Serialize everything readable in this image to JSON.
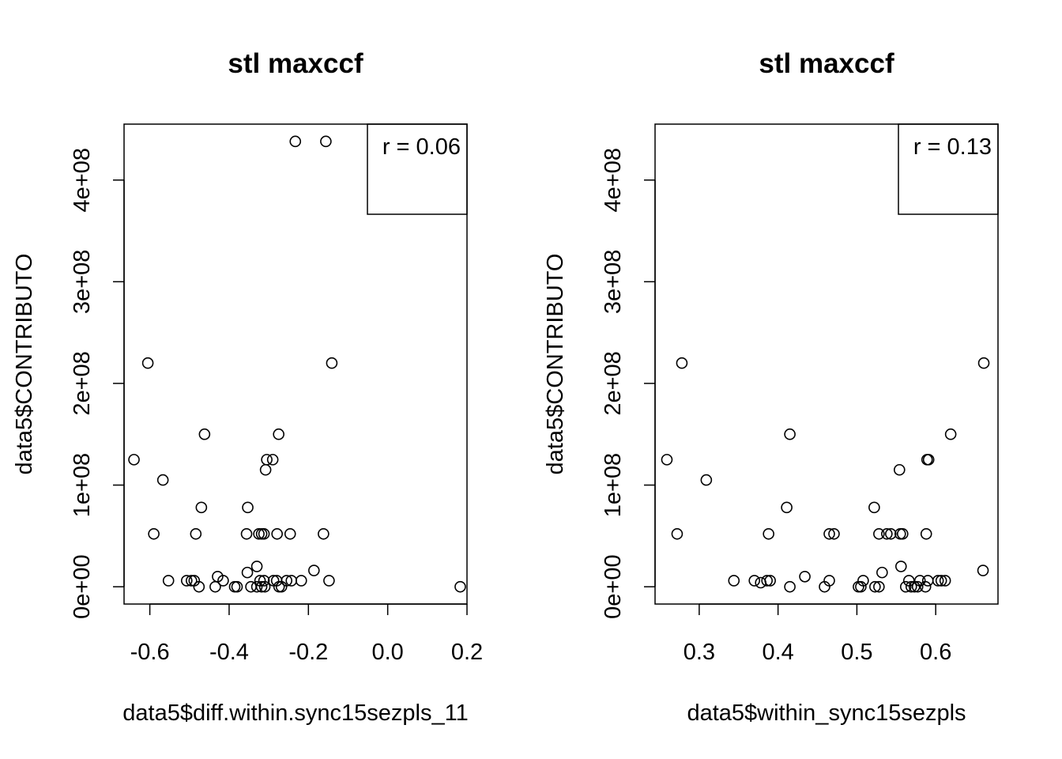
{
  "chart_data": [
    {
      "type": "scatter",
      "title": "stl maxccf",
      "xlabel": "data5$diff.within.sync15sezpls_11",
      "ylabel": "data5$CONTRIBUTO",
      "legend_text": "r = 0.06",
      "legend_position": "top-right",
      "xlim": [
        -0.665,
        0.2
      ],
      "ylim": [
        -17000000,
        455000000
      ],
      "xticks": [
        -0.6,
        -0.4,
        -0.2,
        0.0,
        0.2
      ],
      "xtick_labels": [
        "-0.6",
        "-0.4",
        "-0.2",
        "0.0",
        "0.2"
      ],
      "yticks": [
        0,
        100000000,
        200000000,
        300000000,
        400000000
      ],
      "ytick_labels": [
        "0e+00",
        "1e+08",
        "2e+08",
        "3e+08",
        "4e+08"
      ],
      "points": [
        [
          -0.233,
          438000000
        ],
        [
          -0.156,
          438000000
        ],
        [
          -0.605,
          220000000
        ],
        [
          -0.141,
          220000000
        ],
        [
          -0.462,
          150000000
        ],
        [
          -0.275,
          150000000
        ],
        [
          -0.64,
          125000000
        ],
        [
          -0.305,
          125000000
        ],
        [
          -0.29,
          125000000
        ],
        [
          -0.567,
          105000000
        ],
        [
          -0.308,
          115000000
        ],
        [
          -0.47,
          78000000
        ],
        [
          -0.353,
          78000000
        ],
        [
          -0.59,
          52000000
        ],
        [
          -0.484,
          52000000
        ],
        [
          -0.356,
          52000000
        ],
        [
          -0.325,
          52000000
        ],
        [
          -0.318,
          52000000
        ],
        [
          -0.312,
          52000000
        ],
        [
          -0.279,
          52000000
        ],
        [
          -0.246,
          52000000
        ],
        [
          -0.162,
          52000000
        ],
        [
          -0.553,
          6000000
        ],
        [
          -0.507,
          6000000
        ],
        [
          -0.495,
          6000000
        ],
        [
          -0.488,
          6000000
        ],
        [
          -0.429,
          10000000
        ],
        [
          -0.415,
          6000000
        ],
        [
          -0.476,
          0
        ],
        [
          -0.435,
          0
        ],
        [
          -0.386,
          0
        ],
        [
          -0.38,
          0
        ],
        [
          -0.354,
          14000000
        ],
        [
          -0.33,
          20000000
        ],
        [
          -0.345,
          0
        ],
        [
          -0.33,
          0
        ],
        [
          -0.322,
          6000000
        ],
        [
          -0.318,
          0
        ],
        [
          -0.312,
          6000000
        ],
        [
          -0.31,
          0
        ],
        [
          -0.288,
          6000000
        ],
        [
          -0.28,
          6000000
        ],
        [
          -0.274,
          0
        ],
        [
          -0.268,
          0
        ],
        [
          -0.255,
          6000000
        ],
        [
          -0.243,
          6000000
        ],
        [
          -0.218,
          6000000
        ],
        [
          -0.186,
          16000000
        ],
        [
          -0.148,
          6000000
        ],
        [
          0.183,
          0
        ]
      ]
    },
    {
      "type": "scatter",
      "title": "stl maxccf",
      "xlabel": "data5$within_sync15sezpls",
      "ylabel": "data5$CONTRIBUTO",
      "legend_text": "r = 0.13",
      "legend_position": "top-right",
      "xlim": [
        0.244,
        0.679
      ],
      "ylim": [
        -17000000,
        455000000
      ],
      "xticks": [
        0.3,
        0.4,
        0.5,
        0.6
      ],
      "xtick_labels": [
        "0.3",
        "0.4",
        "0.5",
        "0.6"
      ],
      "yticks": [
        0,
        100000000,
        200000000,
        300000000,
        400000000
      ],
      "ytick_labels": [
        "0e+00",
        "1e+08",
        "2e+08",
        "3e+08",
        "4e+08"
      ],
      "points": [
        [
          0.278,
          220000000
        ],
        [
          0.661,
          220000000
        ],
        [
          0.415,
          150000000
        ],
        [
          0.619,
          150000000
        ],
        [
          0.259,
          125000000
        ],
        [
          0.589,
          125000000
        ],
        [
          0.591,
          125000000
        ],
        [
          0.309,
          105000000
        ],
        [
          0.554,
          115000000
        ],
        [
          0.411,
          78000000
        ],
        [
          0.522,
          78000000
        ],
        [
          0.272,
          52000000
        ],
        [
          0.388,
          52000000
        ],
        [
          0.465,
          52000000
        ],
        [
          0.471,
          52000000
        ],
        [
          0.528,
          52000000
        ],
        [
          0.538,
          52000000
        ],
        [
          0.543,
          52000000
        ],
        [
          0.555,
          52000000
        ],
        [
          0.558,
          52000000
        ],
        [
          0.588,
          52000000
        ],
        [
          0.344,
          6000000
        ],
        [
          0.37,
          6000000
        ],
        [
          0.378,
          4000000
        ],
        [
          0.386,
          6000000
        ],
        [
          0.39,
          6000000
        ],
        [
          0.415,
          0
        ],
        [
          0.434,
          10000000
        ],
        [
          0.459,
          0
        ],
        [
          0.465,
          6000000
        ],
        [
          0.502,
          0
        ],
        [
          0.505,
          0
        ],
        [
          0.508,
          6000000
        ],
        [
          0.523,
          0
        ],
        [
          0.528,
          0
        ],
        [
          0.532,
          14000000
        ],
        [
          0.556,
          20000000
        ],
        [
          0.562,
          0
        ],
        [
          0.566,
          6000000
        ],
        [
          0.569,
          0
        ],
        [
          0.573,
          0
        ],
        [
          0.577,
          0
        ],
        [
          0.58,
          6000000
        ],
        [
          0.587,
          0
        ],
        [
          0.59,
          6000000
        ],
        [
          0.603,
          6000000
        ],
        [
          0.607,
          6000000
        ],
        [
          0.612,
          6000000
        ],
        [
          0.66,
          16000000
        ]
      ]
    }
  ]
}
